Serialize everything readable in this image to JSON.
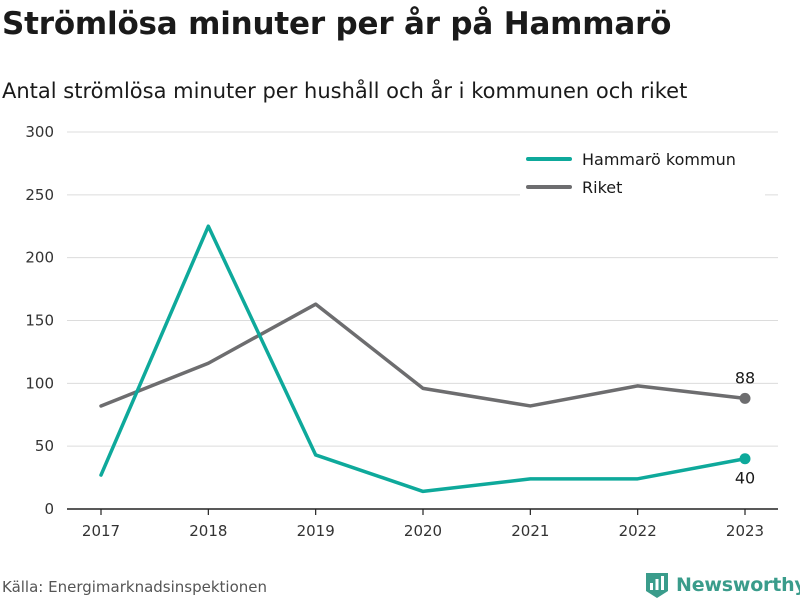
{
  "title": "Strömlösa minuter per år på Hammarö",
  "subtitle": "Antal strömlösa minuter per hushåll och år i kommunen och riket",
  "source": "Källa: Energimarknadsinspektionen",
  "brand": {
    "name": "Newsworthy",
    "icon": "newsworthy-logo-icon",
    "color": "#3a9c8b"
  },
  "chart_data": {
    "type": "line",
    "x": [
      "2017",
      "2018",
      "2019",
      "2020",
      "2021",
      "2022",
      "2023"
    ],
    "ylim": [
      0,
      300
    ],
    "yticks": [
      0,
      50,
      100,
      150,
      200,
      250,
      300
    ],
    "grid": true,
    "legend_position": "top-right",
    "series": [
      {
        "name": "Hammarö kommun",
        "color": "#0ea99b",
        "values": [
          27,
          225,
          43,
          14,
          24,
          24,
          40
        ],
        "end_label": "40",
        "end_label_position": "below"
      },
      {
        "name": "Riket",
        "color": "#6d6d6f",
        "values": [
          82,
          116,
          163,
          96,
          82,
          98,
          88
        ],
        "end_label": "88",
        "end_label_position": "above"
      }
    ]
  }
}
